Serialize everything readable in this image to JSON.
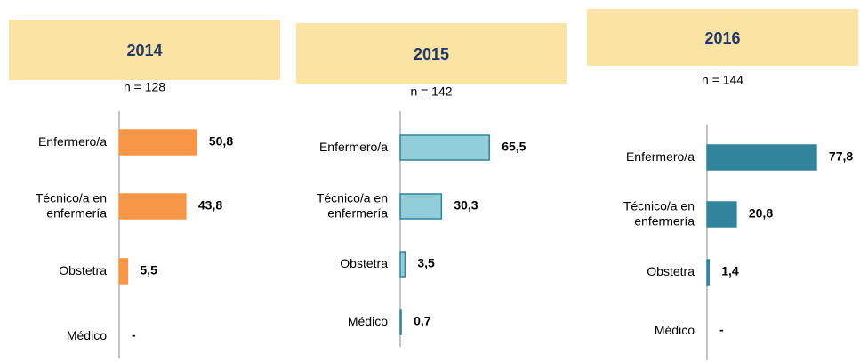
{
  "chart_data": [
    {
      "type": "bar",
      "title": "2014",
      "subtitle": "n = 128",
      "color": "#f79646",
      "edge": "#f79646",
      "categories": [
        "Enfermero/a",
        "Técnico/a en\nenfermería",
        "Obstetra",
        "Médico"
      ],
      "values": [
        50.8,
        43.8,
        5.5,
        null
      ],
      "value_labels": [
        "50,8",
        "43,8",
        "5,5",
        "-"
      ]
    },
    {
      "type": "bar",
      "title": "2015",
      "subtitle": "n = 142",
      "color": "#92cddc",
      "edge": "#31849b",
      "categories": [
        "Enfermero/a",
        "Técnico/a en\nenfermería",
        "Obstetra",
        "Médico"
      ],
      "values": [
        65.5,
        30.3,
        3.5,
        0.7
      ],
      "value_labels": [
        "65,5",
        "30,3",
        "3,5",
        "0,7"
      ]
    },
    {
      "type": "bar",
      "title": "2016",
      "subtitle": "n = 144",
      "color": "#31849b",
      "edge": "#31849b",
      "categories": [
        "Enfermero/a",
        "Técnico/a en\nenfermería",
        "Obstetra",
        "Médico"
      ],
      "values": [
        77.8,
        20.8,
        1.4,
        null
      ],
      "value_labels": [
        "77,8",
        "20,8",
        "1,4",
        "-"
      ]
    }
  ]
}
